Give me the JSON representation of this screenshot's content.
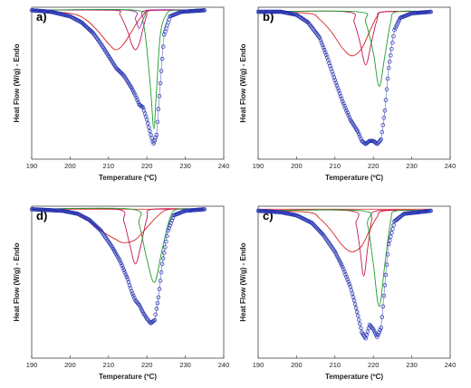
{
  "chart_data": [
    {
      "type": "line",
      "panel_label": "a)",
      "xlabel": "Temperature (ºC)",
      "ylabel": "Heat Flow (W/g) - Endo",
      "xlim": [
        190,
        240
      ],
      "ylim": [
        0,
        1
      ],
      "x_ticks": [
        "190",
        "200",
        "210",
        "220",
        "230",
        "240"
      ],
      "grid": false,
      "series": [
        {
          "color": "#d62020",
          "values": [
            [
              190,
              0.98
            ],
            [
              200,
              0.96
            ],
            [
              204,
              0.92
            ],
            [
              207,
              0.85
            ],
            [
              210,
              0.76
            ],
            [
              212,
              0.72
            ],
            [
              214,
              0.76
            ],
            [
              216,
              0.84
            ],
            [
              218,
              0.92
            ],
            [
              220,
              0.97
            ],
            [
              223,
              0.98
            ],
            [
              235,
              0.98
            ]
          ]
        },
        {
          "color": "#c2185b",
          "values": [
            [
              190,
              0.98
            ],
            [
              211,
              0.98
            ],
            [
              213,
              0.95
            ],
            [
              215,
              0.84
            ],
            [
              216,
              0.76
            ],
            [
              217,
              0.72
            ],
            [
              218,
              0.76
            ],
            [
              219,
              0.86
            ],
            [
              220,
              0.95
            ],
            [
              221,
              0.98
            ],
            [
              235,
              0.98
            ]
          ]
        },
        {
          "color": "#9c27b0",
          "values": [
            [
              190,
              0.98
            ],
            [
              215,
              0.98
            ],
            [
              217,
              0.92
            ],
            [
              218,
              0.86
            ],
            [
              219,
              0.92
            ],
            [
              220,
              0.98
            ],
            [
              235,
              0.98
            ]
          ]
        },
        {
          "color": "#1e9e2a",
          "values": [
            [
              190,
              0.98
            ],
            [
              217,
              0.98
            ],
            [
              219,
              0.9
            ],
            [
              220,
              0.72
            ],
            [
              221,
              0.45
            ],
            [
              221.8,
              0.2
            ],
            [
              222.5,
              0.45
            ],
            [
              223.5,
              0.82
            ],
            [
              225,
              0.95
            ],
            [
              227,
              0.98
            ],
            [
              235,
              0.98
            ]
          ]
        },
        {
          "color": "#2633b0",
          "marker": "circle",
          "values": [
            [
              190,
              0.98
            ],
            [
              195,
              0.97
            ],
            [
              200,
              0.94
            ],
            [
              203,
              0.9
            ],
            [
              206,
              0.83
            ],
            [
              208,
              0.76
            ],
            [
              210,
              0.68
            ],
            [
              212,
              0.6
            ],
            [
              214,
              0.55
            ],
            [
              216,
              0.47
            ],
            [
              217,
              0.42
            ],
            [
              218,
              0.36
            ],
            [
              219,
              0.34
            ],
            [
              220,
              0.26
            ],
            [
              221,
              0.16
            ],
            [
              221.7,
              0.1
            ],
            [
              222.5,
              0.16
            ],
            [
              223.5,
              0.5
            ],
            [
              224.5,
              0.82
            ],
            [
              226,
              0.94
            ],
            [
              229,
              0.97
            ],
            [
              235,
              0.98
            ]
          ]
        }
      ]
    },
    {
      "type": "line",
      "panel_label": "b)",
      "xlabel": "Temperature (ºC)",
      "ylabel": "Heat Flow (W/g) - Endo",
      "xlim": [
        190,
        240
      ],
      "ylim": [
        0,
        1
      ],
      "x_ticks": [
        "190",
        "200",
        "210",
        "220",
        "230",
        "240"
      ],
      "grid": false,
      "series": [
        {
          "color": "#d62020",
          "values": [
            [
              190,
              0.97
            ],
            [
              203,
              0.96
            ],
            [
              206,
              0.92
            ],
            [
              209,
              0.84
            ],
            [
              212,
              0.73
            ],
            [
              214.5,
              0.68
            ],
            [
              217,
              0.73
            ],
            [
              219,
              0.84
            ],
            [
              221,
              0.94
            ],
            [
              223,
              0.97
            ],
            [
              235,
              0.97
            ]
          ]
        },
        {
          "color": "#c2185b",
          "values": [
            [
              190,
              0.97
            ],
            [
              213,
              0.97
            ],
            [
              215,
              0.9
            ],
            [
              216.5,
              0.77
            ],
            [
              218,
              0.62
            ],
            [
              219.5,
              0.77
            ],
            [
              221,
              0.92
            ],
            [
              222.5,
              0.97
            ],
            [
              235,
              0.97
            ]
          ]
        },
        {
          "color": "#1e9e2a",
          "values": [
            [
              190,
              0.97
            ],
            [
              216,
              0.97
            ],
            [
              218,
              0.9
            ],
            [
              220,
              0.7
            ],
            [
              221.5,
              0.48
            ],
            [
              223,
              0.68
            ],
            [
              224.5,
              0.9
            ],
            [
              226,
              0.97
            ],
            [
              235,
              0.97
            ]
          ]
        },
        {
          "color": "#2633b0",
          "marker": "circle",
          "values": [
            [
              190,
              0.97
            ],
            [
              196,
              0.97
            ],
            [
              200,
              0.95
            ],
            [
              203,
              0.9
            ],
            [
              206,
              0.8
            ],
            [
              208,
              0.67
            ],
            [
              210,
              0.52
            ],
            [
              212,
              0.38
            ],
            [
              214,
              0.26
            ],
            [
              216,
              0.18
            ],
            [
              217,
              0.12
            ],
            [
              218,
              0.1
            ],
            [
              219,
              0.12
            ],
            [
              220,
              0.12
            ],
            [
              221,
              0.1
            ],
            [
              222,
              0.13
            ],
            [
              223,
              0.32
            ],
            [
              224,
              0.6
            ],
            [
              225.5,
              0.85
            ],
            [
              227,
              0.93
            ],
            [
              230,
              0.96
            ],
            [
              235,
              0.97
            ]
          ]
        }
      ]
    },
    {
      "type": "line",
      "panel_label": "d)",
      "xlabel": "Temperature (ºC)",
      "ylabel": "Heat Flow (W/g) - Endo",
      "xlim": [
        190,
        240
      ],
      "ylim": [
        0,
        1
      ],
      "x_ticks": [
        "190",
        "200",
        "210",
        "220",
        "230",
        "240"
      ],
      "grid": false,
      "series": [
        {
          "color": "#e53935",
          "values": [
            [
              190,
              0.98
            ],
            [
              235,
              0.98
            ]
          ]
        },
        {
          "color": "#d62020",
          "values": [
            [
              190,
              0.98
            ],
            [
              200,
              0.96
            ],
            [
              204,
              0.92
            ],
            [
              208,
              0.84
            ],
            [
              212,
              0.78
            ],
            [
              214,
              0.76
            ],
            [
              217,
              0.78
            ],
            [
              220,
              0.86
            ],
            [
              223,
              0.94
            ],
            [
              226,
              0.98
            ],
            [
              235,
              0.98
            ]
          ]
        },
        {
          "color": "#c2185b",
          "values": [
            [
              190,
              0.98
            ],
            [
              212,
              0.98
            ],
            [
              214,
              0.9
            ],
            [
              215.5,
              0.75
            ],
            [
              217,
              0.62
            ],
            [
              218.5,
              0.75
            ],
            [
              220,
              0.92
            ],
            [
              221.5,
              0.98
            ],
            [
              235,
              0.98
            ]
          ]
        },
        {
          "color": "#1e9e2a",
          "values": [
            [
              190,
              0.98
            ],
            [
              216,
              0.98
            ],
            [
              218,
              0.88
            ],
            [
              220,
              0.65
            ],
            [
              222,
              0.5
            ],
            [
              224,
              0.72
            ],
            [
              226,
              0.92
            ],
            [
              228,
              0.98
            ],
            [
              235,
              0.98
            ]
          ]
        },
        {
          "color": "#2633b0",
          "marker": "circle",
          "values": [
            [
              190,
              0.98
            ],
            [
              198,
              0.97
            ],
            [
              202,
              0.95
            ],
            [
              205,
              0.91
            ],
            [
              208,
              0.84
            ],
            [
              211,
              0.73
            ],
            [
              213,
              0.64
            ],
            [
              215,
              0.52
            ],
            [
              216,
              0.44
            ],
            [
              217,
              0.38
            ],
            [
              218,
              0.35
            ],
            [
              219,
              0.3
            ],
            [
              220,
              0.26
            ],
            [
              221,
              0.23
            ],
            [
              222,
              0.25
            ],
            [
              223,
              0.4
            ],
            [
              224,
              0.62
            ],
            [
              225.5,
              0.84
            ],
            [
              227,
              0.94
            ],
            [
              230,
              0.97
            ],
            [
              235,
              0.98
            ]
          ]
        }
      ]
    },
    {
      "type": "line",
      "panel_label": "c)",
      "xlabel": "Temperature (ºC)",
      "ylabel": "Heat Flow (W/g) - Endo",
      "xlim": [
        190,
        240
      ],
      "ylim": [
        0,
        1
      ],
      "x_ticks": [
        "190",
        "200",
        "210",
        "220",
        "230",
        "240"
      ],
      "grid": false,
      "series": [
        {
          "color": "#e53935",
          "values": [
            [
              190,
              0.98
            ],
            [
              235,
              0.98
            ]
          ]
        },
        {
          "color": "#d62020",
          "values": [
            [
              190,
              0.97
            ],
            [
              203,
              0.96
            ],
            [
              206,
              0.92
            ],
            [
              209,
              0.84
            ],
            [
              212,
              0.74
            ],
            [
              214.5,
              0.7
            ],
            [
              217,
              0.74
            ],
            [
              219,
              0.84
            ],
            [
              221,
              0.93
            ],
            [
              223,
              0.97
            ],
            [
              235,
              0.97
            ]
          ]
        },
        {
          "color": "#c2185b",
          "values": [
            [
              190,
              0.97
            ],
            [
              214,
              0.97
            ],
            [
              215.5,
              0.88
            ],
            [
              216.5,
              0.72
            ],
            [
              217.5,
              0.54
            ],
            [
              218.5,
              0.72
            ],
            [
              219.5,
              0.9
            ],
            [
              221,
              0.97
            ],
            [
              235,
              0.97
            ]
          ]
        },
        {
          "color": "#1e9e2a",
          "values": [
            [
              190,
              0.97
            ],
            [
              217,
              0.97
            ],
            [
              218.5,
              0.88
            ],
            [
              220,
              0.62
            ],
            [
              221.5,
              0.34
            ],
            [
              223,
              0.62
            ],
            [
              224.5,
              0.9
            ],
            [
              226,
              0.97
            ],
            [
              235,
              0.97
            ]
          ]
        },
        {
          "color": "#2633b0",
          "marker": "circle",
          "values": [
            [
              190,
              0.97
            ],
            [
              196,
              0.96
            ],
            [
              200,
              0.94
            ],
            [
              204,
              0.89
            ],
            [
              207,
              0.81
            ],
            [
              210,
              0.7
            ],
            [
              212,
              0.6
            ],
            [
              214,
              0.47
            ],
            [
              215,
              0.38
            ],
            [
              216,
              0.28
            ],
            [
              217,
              0.17
            ],
            [
              218,
              0.13
            ],
            [
              219,
              0.22
            ],
            [
              220,
              0.19
            ],
            [
              221,
              0.14
            ],
            [
              222,
              0.2
            ],
            [
              223,
              0.48
            ],
            [
              224,
              0.75
            ],
            [
              225.5,
              0.9
            ],
            [
              228,
              0.95
            ],
            [
              235,
              0.97
            ]
          ]
        }
      ]
    }
  ]
}
